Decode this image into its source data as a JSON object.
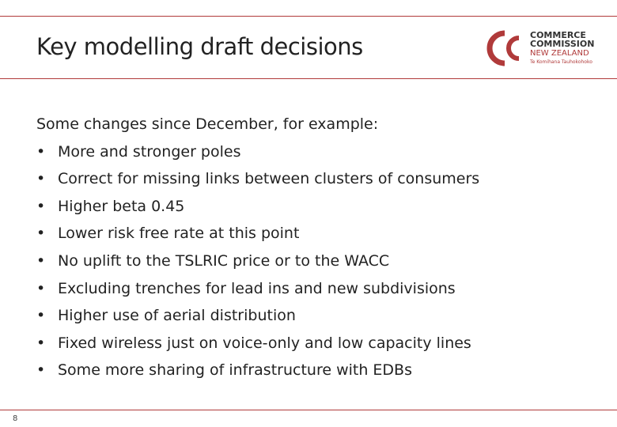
{
  "header": {
    "title": "Key modelling draft decisions",
    "logo": {
      "line1": "COMMERCE",
      "line2": "COMMISSION",
      "line3": "NEW ZEALAND",
      "line4": "Te Komihana Tauhokohoko"
    }
  },
  "body": {
    "intro": "Some changes since December, for example:",
    "bullets": [
      "More and stronger poles",
      "Correct for missing links between clusters of consumers",
      "Higher beta 0.45",
      "Lower risk free rate at this point",
      "No uplift to the TSLRIC price or to the WACC",
      "Excluding trenches for lead ins and new subdivisions",
      "Higher use of aerial distribution",
      "Fixed wireless just on voice-only and low capacity lines",
      "Some more sharing of infrastructure with EDBs"
    ]
  },
  "footer": {
    "page_number": "8"
  }
}
